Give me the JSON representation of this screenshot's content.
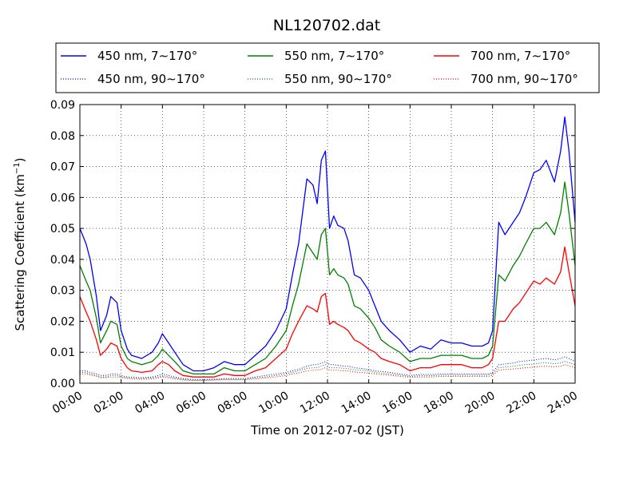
{
  "chart_data": {
    "type": "line",
    "title": "NL120702.dat",
    "xlabel": "Time on 2012-07-02 (JST)",
    "ylabel": "Scattering Coefficient (km",
    "ylabel_unit_exp": "−1",
    "ylabel_close": ")",
    "xlim": [
      0,
      24
    ],
    "ylim": [
      0,
      0.09
    ],
    "x_tick_values": [
      0,
      2,
      4,
      6,
      8,
      10,
      12,
      14,
      16,
      18,
      20,
      22,
      24
    ],
    "x_tick_labels": [
      "00:00",
      "02:00",
      "04:00",
      "06:00",
      "08:00",
      "10:00",
      "12:00",
      "14:00",
      "16:00",
      "18:00",
      "20:00",
      "22:00",
      "24:00"
    ],
    "y_tick_values": [
      0,
      0.01,
      0.02,
      0.03,
      0.04,
      0.05,
      0.06,
      0.07,
      0.08,
      0.09
    ],
    "y_tick_labels": [
      "0.00",
      "0.01",
      "0.02",
      "0.03",
      "0.04",
      "0.05",
      "0.06",
      "0.07",
      "0.08",
      "0.09"
    ],
    "grid": true,
    "legend_position": "top, above plot, 3 columns",
    "x": [
      0,
      0.3,
      0.5,
      0.8,
      1,
      1.3,
      1.5,
      1.8,
      2,
      2.3,
      2.5,
      3,
      3.5,
      3.8,
      4,
      4.3,
      4.6,
      5,
      5.5,
      6,
      6.5,
      7,
      7.5,
      8,
      8.5,
      9,
      9.5,
      10,
      10.3,
      10.6,
      11,
      11.3,
      11.5,
      11.7,
      11.9,
      12.1,
      12.3,
      12.5,
      12.8,
      13,
      13.3,
      13.6,
      14,
      14.3,
      14.6,
      15,
      15.5,
      16,
      16.5,
      17,
      17.5,
      18,
      18.5,
      19,
      19.5,
      19.8,
      20,
      20.3,
      20.6,
      21,
      21.3,
      21.6,
      22,
      22.3,
      22.6,
      23,
      23.3,
      23.5,
      23.7,
      24
    ],
    "series": [
      {
        "name": "450 nm, 7∼170°",
        "color": "#0000ff",
        "dash": "solid",
        "values": [
          0.05,
          0.045,
          0.04,
          0.028,
          0.017,
          0.022,
          0.028,
          0.026,
          0.017,
          0.011,
          0.009,
          0.008,
          0.01,
          0.013,
          0.016,
          0.013,
          0.01,
          0.006,
          0.004,
          0.004,
          0.005,
          0.007,
          0.006,
          0.006,
          0.009,
          0.012,
          0.017,
          0.024,
          0.035,
          0.045,
          0.066,
          0.064,
          0.058,
          0.072,
          0.075,
          0.05,
          0.054,
          0.051,
          0.05,
          0.046,
          0.035,
          0.034,
          0.03,
          0.025,
          0.02,
          0.017,
          0.014,
          0.01,
          0.012,
          0.011,
          0.014,
          0.013,
          0.013,
          0.012,
          0.012,
          0.013,
          0.017,
          0.052,
          0.048,
          0.052,
          0.055,
          0.06,
          0.068,
          0.069,
          0.072,
          0.065,
          0.075,
          0.086,
          0.075,
          0.052
        ]
      },
      {
        "name": "450 nm, 90∼170°",
        "color": "#0000ff",
        "dash": "dotted",
        "values": [
          0.004,
          0.004,
          0.0035,
          0.003,
          0.0025,
          0.0025,
          0.003,
          0.003,
          0.0025,
          0.002,
          0.002,
          0.0018,
          0.002,
          0.0025,
          0.003,
          0.0025,
          0.002,
          0.0015,
          0.0012,
          0.0012,
          0.0013,
          0.0015,
          0.0015,
          0.0015,
          0.002,
          0.0025,
          0.003,
          0.0035,
          0.004,
          0.0045,
          0.0055,
          0.006,
          0.006,
          0.0065,
          0.007,
          0.006,
          0.006,
          0.0058,
          0.0055,
          0.0055,
          0.005,
          0.0048,
          0.0045,
          0.004,
          0.0038,
          0.0035,
          0.003,
          0.0025,
          0.0028,
          0.0028,
          0.003,
          0.003,
          0.003,
          0.003,
          0.003,
          0.003,
          0.0035,
          0.006,
          0.0062,
          0.0065,
          0.007,
          0.0072,
          0.0075,
          0.0078,
          0.008,
          0.0075,
          0.008,
          0.0085,
          0.008,
          0.007
        ]
      },
      {
        "name": "550 nm, 7∼170°",
        "color": "#008000",
        "dash": "solid",
        "values": [
          0.038,
          0.033,
          0.03,
          0.021,
          0.013,
          0.017,
          0.02,
          0.019,
          0.012,
          0.008,
          0.007,
          0.006,
          0.007,
          0.009,
          0.011,
          0.009,
          0.007,
          0.004,
          0.003,
          0.003,
          0.003,
          0.005,
          0.004,
          0.004,
          0.006,
          0.008,
          0.012,
          0.017,
          0.025,
          0.032,
          0.045,
          0.042,
          0.04,
          0.048,
          0.05,
          0.035,
          0.037,
          0.035,
          0.034,
          0.032,
          0.025,
          0.024,
          0.021,
          0.018,
          0.014,
          0.012,
          0.01,
          0.007,
          0.008,
          0.008,
          0.009,
          0.009,
          0.009,
          0.008,
          0.008,
          0.009,
          0.012,
          0.035,
          0.033,
          0.038,
          0.041,
          0.045,
          0.05,
          0.05,
          0.052,
          0.048,
          0.055,
          0.065,
          0.055,
          0.038
        ]
      },
      {
        "name": "550 nm, 90∼170°",
        "color": "#008000",
        "dash": "dotted",
        "values": [
          0.0035,
          0.0035,
          0.003,
          0.0025,
          0.002,
          0.002,
          0.0025,
          0.0025,
          0.002,
          0.0018,
          0.0016,
          0.0015,
          0.0017,
          0.002,
          0.0025,
          0.002,
          0.0017,
          0.0012,
          0.001,
          0.001,
          0.0011,
          0.0013,
          0.0013,
          0.0013,
          0.0017,
          0.002,
          0.0025,
          0.003,
          0.0035,
          0.004,
          0.0048,
          0.005,
          0.005,
          0.0055,
          0.006,
          0.005,
          0.005,
          0.005,
          0.0048,
          0.0047,
          0.0043,
          0.0042,
          0.004,
          0.0035,
          0.0033,
          0.003,
          0.0026,
          0.0022,
          0.0024,
          0.0024,
          0.0026,
          0.0026,
          0.0026,
          0.0026,
          0.0026,
          0.0026,
          0.003,
          0.005,
          0.0052,
          0.0055,
          0.0058,
          0.006,
          0.0062,
          0.0065,
          0.0066,
          0.0063,
          0.0066,
          0.007,
          0.0066,
          0.006
        ]
      },
      {
        "name": "700 nm, 7∼170°",
        "color": "#ff0000",
        "dash": "solid",
        "values": [
          0.028,
          0.023,
          0.02,
          0.014,
          0.009,
          0.011,
          0.013,
          0.012,
          0.008,
          0.005,
          0.004,
          0.0035,
          0.004,
          0.006,
          0.007,
          0.006,
          0.004,
          0.0025,
          0.002,
          0.002,
          0.002,
          0.003,
          0.0025,
          0.0025,
          0.004,
          0.005,
          0.008,
          0.011,
          0.016,
          0.02,
          0.025,
          0.024,
          0.023,
          0.028,
          0.029,
          0.019,
          0.02,
          0.019,
          0.018,
          0.017,
          0.014,
          0.013,
          0.011,
          0.01,
          0.008,
          0.007,
          0.006,
          0.004,
          0.005,
          0.005,
          0.006,
          0.006,
          0.006,
          0.005,
          0.005,
          0.006,
          0.008,
          0.02,
          0.02,
          0.024,
          0.026,
          0.029,
          0.033,
          0.032,
          0.034,
          0.032,
          0.036,
          0.044,
          0.036,
          0.025
        ]
      },
      {
        "name": "700 nm, 90∼170°",
        "color": "#ff0000",
        "dash": "dotted",
        "values": [
          0.003,
          0.003,
          0.0027,
          0.0022,
          0.0018,
          0.0018,
          0.002,
          0.002,
          0.0018,
          0.0015,
          0.0014,
          0.0013,
          0.0014,
          0.0017,
          0.002,
          0.0017,
          0.0014,
          0.001,
          0.0009,
          0.0009,
          0.001,
          0.0011,
          0.0011,
          0.0011,
          0.0014,
          0.0017,
          0.002,
          0.0025,
          0.003,
          0.0033,
          0.004,
          0.0042,
          0.0042,
          0.0045,
          0.005,
          0.0042,
          0.0042,
          0.0042,
          0.004,
          0.004,
          0.0036,
          0.0035,
          0.0033,
          0.003,
          0.0028,
          0.0026,
          0.0022,
          0.0019,
          0.002,
          0.002,
          0.0022,
          0.0022,
          0.0022,
          0.0022,
          0.0022,
          0.0022,
          0.0025,
          0.0042,
          0.0044,
          0.0046,
          0.0048,
          0.005,
          0.0052,
          0.0054,
          0.0055,
          0.0053,
          0.0055,
          0.006,
          0.0056,
          0.005
        ]
      }
    ]
  }
}
